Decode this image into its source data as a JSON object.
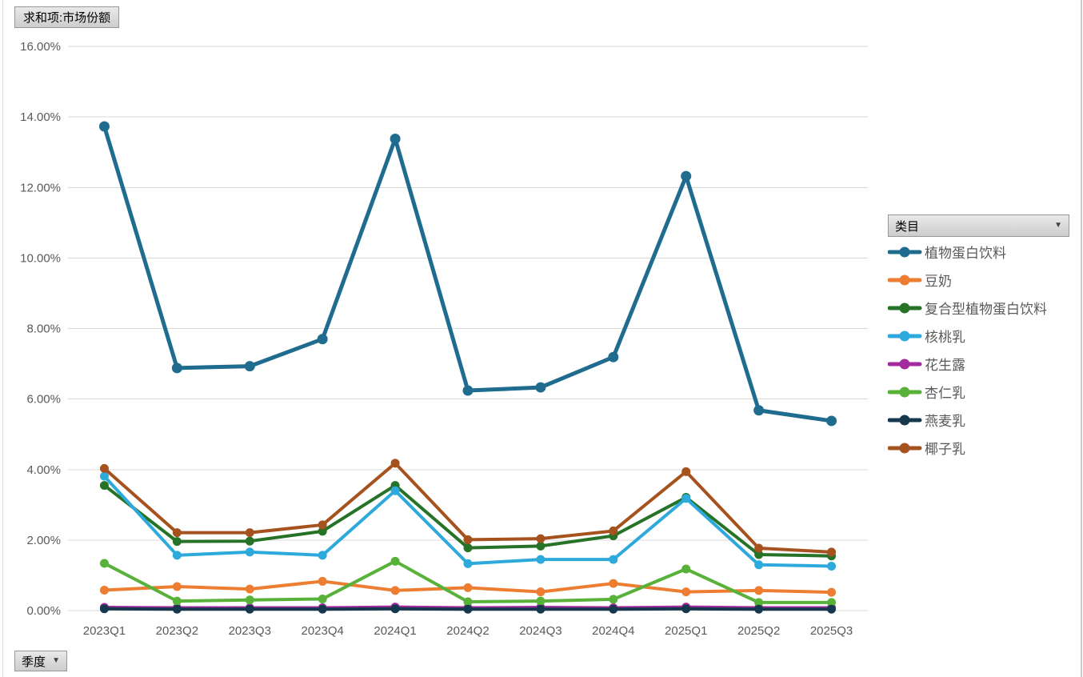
{
  "value_button": {
    "label": "求和项:市场份额"
  },
  "legend": {
    "header": "类目"
  },
  "axis_button": {
    "label": "季度"
  },
  "chart_data": {
    "type": "line",
    "title": "求和项:市场份额",
    "xlabel": "季度",
    "ylabel": "",
    "categories": [
      "2023Q1",
      "2023Q2",
      "2023Q3",
      "2023Q4",
      "2024Q1",
      "2024Q2",
      "2024Q3",
      "2024Q4",
      "2025Q1",
      "2025Q2",
      "2025Q3"
    ],
    "series": [
      {
        "name": "植物蛋白饮料",
        "color": "#1F6C8F",
        "values": [
          13.73,
          6.88,
          6.93,
          7.7,
          13.38,
          6.24,
          6.33,
          7.19,
          12.32,
          5.68,
          5.38
        ]
      },
      {
        "name": "豆奶",
        "color": "#ED7D31",
        "values": [
          0.58,
          0.68,
          0.61,
          0.83,
          0.57,
          0.65,
          0.53,
          0.77,
          0.53,
          0.57,
          0.52
        ]
      },
      {
        "name": "复合型植物蛋白饮料",
        "color": "#267226",
        "values": [
          3.55,
          1.96,
          1.97,
          2.25,
          3.55,
          1.78,
          1.83,
          2.12,
          3.21,
          1.59,
          1.55
        ]
      },
      {
        "name": "核桃乳",
        "color": "#2EA9DB",
        "values": [
          3.81,
          1.57,
          1.66,
          1.57,
          3.4,
          1.33,
          1.45,
          1.45,
          3.18,
          1.3,
          1.26
        ]
      },
      {
        "name": "花生露",
        "color": "#A32B9D",
        "values": [
          0.09,
          0.08,
          0.08,
          0.08,
          0.1,
          0.08,
          0.09,
          0.08,
          0.1,
          0.08,
          0.08
        ]
      },
      {
        "name": "杏仁乳",
        "color": "#58B23A",
        "values": [
          1.34,
          0.27,
          0.3,
          0.33,
          1.4,
          0.25,
          0.27,
          0.32,
          1.18,
          0.23,
          0.23
        ]
      },
      {
        "name": "燕麦乳",
        "color": "#16384E",
        "values": [
          0.05,
          0.04,
          0.04,
          0.04,
          0.05,
          0.04,
          0.04,
          0.04,
          0.05,
          0.04,
          0.04
        ]
      },
      {
        "name": "椰子乳",
        "color": "#A6521E",
        "values": [
          4.03,
          2.21,
          2.21,
          2.43,
          4.18,
          2.01,
          2.04,
          2.26,
          3.94,
          1.77,
          1.66
        ]
      }
    ],
    "value_unit": "percent",
    "ylim": [
      0,
      16
    ],
    "ytick_step": 2,
    "ytick_labels": [
      "0.00%",
      "2.00%",
      "4.00%",
      "6.00%",
      "8.00%",
      "10.00%",
      "12.00%",
      "14.00%",
      "16.00%"
    ],
    "grid": true,
    "legend_position": "right",
    "marker": "circle",
    "colors": {
      "grid": "#D9D9D9",
      "axis_text": "#595959"
    }
  }
}
